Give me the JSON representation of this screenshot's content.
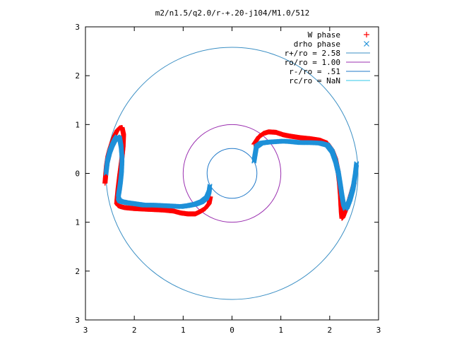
{
  "chart_data": {
    "type": "scatter",
    "title": "m2/n1.5/q2.0/r-+.20-j104/M1.0/512",
    "xlim": [
      -3,
      3
    ],
    "ylim": [
      -3,
      3
    ],
    "x_ticks": [
      {
        "value": -3,
        "label": "3"
      },
      {
        "value": -2,
        "label": "2"
      },
      {
        "value": -1,
        "label": "1"
      },
      {
        "value": 0,
        "label": "0"
      },
      {
        "value": 1,
        "label": "1"
      },
      {
        "value": 2,
        "label": "2"
      },
      {
        "value": 3,
        "label": "3"
      }
    ],
    "y_ticks": [
      {
        "value": 3,
        "label": "3"
      },
      {
        "value": 2,
        "label": "2"
      },
      {
        "value": 1,
        "label": "1"
      },
      {
        "value": 0,
        "label": "0"
      },
      {
        "value": -1,
        "label": "1"
      },
      {
        "value": -2,
        "label": "2"
      },
      {
        "value": -3,
        "label": "3"
      }
    ],
    "grid": false,
    "legend_position": "top-right",
    "circles": [
      {
        "name": "r+/ro = 2.58",
        "radius": 2.58,
        "color": "#3b8fc4"
      },
      {
        "name": "ro/ro = 1.00",
        "radius": 1.0,
        "color": "#9b30b0"
      },
      {
        "name": "r-/ro = .51",
        "radius": 0.51,
        "color": "#1f78c8"
      },
      {
        "name": "rc/ro = NaN",
        "radius": null,
        "color": "#32c8e8"
      }
    ],
    "series": [
      {
        "name": "W phase",
        "marker": "plus",
        "color": "#ff0000",
        "x": [
          -2.6,
          -2.57,
          -2.54,
          -2.5,
          -2.45,
          -2.4,
          -2.35,
          -2.3,
          -2.25,
          -2.22,
          -2.23,
          -2.26,
          -2.3,
          -2.33,
          -2.35,
          -2.36,
          -2.33,
          -2.28,
          -2.2,
          -2.0,
          -1.8,
          -1.6,
          -1.4,
          -1.2,
          -1.05,
          -0.9,
          -0.75,
          -0.65,
          -0.55,
          -0.47,
          -0.44,
          0.45,
          0.55,
          0.65,
          0.75,
          0.9,
          1.05,
          1.2,
          1.4,
          1.6,
          1.8,
          1.95,
          2.05,
          2.12,
          2.17,
          2.2,
          2.22,
          2.23,
          2.24,
          2.25,
          2.27,
          2.3,
          2.35,
          2.4,
          2.45,
          2.5
        ],
        "y": [
          -0.2,
          0.15,
          0.35,
          0.5,
          0.65,
          0.78,
          0.88,
          0.93,
          0.94,
          0.8,
          0.55,
          0.25,
          -0.05,
          -0.3,
          -0.5,
          -0.62,
          -0.66,
          -0.68,
          -0.7,
          -0.72,
          -0.73,
          -0.74,
          -0.75,
          -0.77,
          -0.81,
          -0.83,
          -0.83,
          -0.78,
          -0.72,
          -0.62,
          -0.47,
          0.6,
          0.75,
          0.82,
          0.85,
          0.84,
          0.79,
          0.76,
          0.73,
          0.71,
          0.68,
          0.62,
          0.48,
          0.3,
          0.05,
          -0.2,
          -0.45,
          -0.65,
          -0.82,
          -0.92,
          -0.9,
          -0.82,
          -0.7,
          -0.55,
          -0.38,
          -0.2
        ]
      },
      {
        "name": "drho phase",
        "marker": "cross",
        "color": "#1e90d8",
        "x": [
          -2.58,
          -2.55,
          -2.5,
          -2.45,
          -2.4,
          -2.35,
          -2.3,
          -2.27,
          -2.25,
          -2.26,
          -2.28,
          -2.3,
          -2.32,
          -2.33,
          -2.3,
          -2.25,
          -2.15,
          -2.0,
          -1.8,
          -1.6,
          -1.4,
          -1.2,
          -1.05,
          -0.9,
          -0.75,
          -0.62,
          -0.52,
          -0.47,
          -0.45,
          0.45,
          0.5,
          0.6,
          0.75,
          0.9,
          1.05,
          1.2,
          1.4,
          1.6,
          1.8,
          1.95,
          2.05,
          2.12,
          2.18,
          2.22,
          2.25,
          2.28,
          2.32,
          2.36,
          2.42,
          2.48,
          2.52,
          2.55
        ],
        "y": [
          0.0,
          0.25,
          0.45,
          0.58,
          0.68,
          0.75,
          0.72,
          0.55,
          0.3,
          0.05,
          -0.15,
          -0.3,
          -0.42,
          -0.5,
          -0.56,
          -0.58,
          -0.6,
          -0.62,
          -0.65,
          -0.65,
          -0.66,
          -0.67,
          -0.68,
          -0.66,
          -0.63,
          -0.58,
          -0.5,
          -0.38,
          -0.25,
          0.25,
          0.55,
          0.62,
          0.64,
          0.65,
          0.66,
          0.65,
          0.63,
          0.63,
          0.62,
          0.58,
          0.45,
          0.25,
          0.0,
          -0.25,
          -0.45,
          -0.62,
          -0.72,
          -0.68,
          -0.52,
          -0.3,
          -0.05,
          0.2
        ]
      }
    ]
  }
}
